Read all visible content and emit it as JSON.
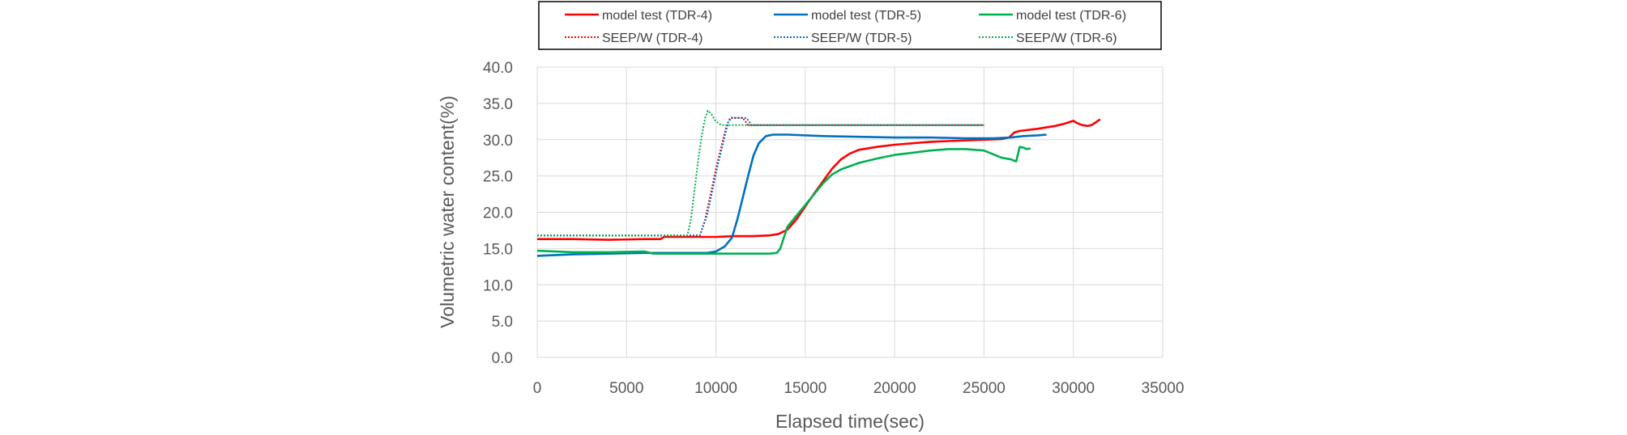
{
  "chart_data": {
    "type": "line",
    "title": "",
    "xlabel": "Elapsed time(sec)",
    "ylabel": "Volumetric water content(%)",
    "xlim": [
      0,
      35000
    ],
    "ylim": [
      0,
      40
    ],
    "xticks": [
      0,
      5000,
      10000,
      15000,
      20000,
      25000,
      30000,
      35000
    ],
    "yticks": [
      "0.0",
      "5.0",
      "10.0",
      "15.0",
      "20.0",
      "25.0",
      "30.0",
      "35.0",
      "40.0"
    ],
    "grid": true,
    "legend_position": "top",
    "series": [
      {
        "name": "model test (TDR-4)",
        "color": "#ff0000",
        "style": "solid",
        "points": [
          [
            0,
            16.3
          ],
          [
            2000,
            16.3
          ],
          [
            4000,
            16.2
          ],
          [
            6000,
            16.3
          ],
          [
            6900,
            16.3
          ],
          [
            7100,
            16.6
          ],
          [
            9000,
            16.6
          ],
          [
            10000,
            16.6
          ],
          [
            11000,
            16.7
          ],
          [
            12000,
            16.7
          ],
          [
            13000,
            16.8
          ],
          [
            13500,
            17.0
          ],
          [
            14000,
            17.6
          ],
          [
            14500,
            19.0
          ],
          [
            15000,
            20.8
          ],
          [
            15500,
            22.6
          ],
          [
            16000,
            24.3
          ],
          [
            16500,
            26.0
          ],
          [
            17000,
            27.3
          ],
          [
            17500,
            28.1
          ],
          [
            18000,
            28.6
          ],
          [
            19000,
            29.0
          ],
          [
            20000,
            29.3
          ],
          [
            21000,
            29.5
          ],
          [
            22000,
            29.7
          ],
          [
            23000,
            29.8
          ],
          [
            24000,
            29.9
          ],
          [
            25000,
            30.0
          ],
          [
            26000,
            30.1
          ],
          [
            26400,
            30.3
          ],
          [
            26700,
            31.0
          ],
          [
            27000,
            31.2
          ],
          [
            28000,
            31.5
          ],
          [
            29000,
            31.9
          ],
          [
            29500,
            32.2
          ],
          [
            30000,
            32.6
          ],
          [
            30200,
            32.3
          ],
          [
            30500,
            32.0
          ],
          [
            30800,
            31.9
          ],
          [
            31000,
            32.0
          ],
          [
            31200,
            32.3
          ],
          [
            31500,
            32.8
          ]
        ]
      },
      {
        "name": "model test (TDR-5)",
        "color": "#0070c0",
        "style": "solid",
        "points": [
          [
            0,
            14.0
          ],
          [
            2000,
            14.2
          ],
          [
            4000,
            14.3
          ],
          [
            6000,
            14.4
          ],
          [
            8000,
            14.4
          ],
          [
            9500,
            14.4
          ],
          [
            10000,
            14.6
          ],
          [
            10500,
            15.3
          ],
          [
            10900,
            16.5
          ],
          [
            11200,
            19.0
          ],
          [
            11500,
            22.0
          ],
          [
            11800,
            25.0
          ],
          [
            12100,
            27.8
          ],
          [
            12400,
            29.5
          ],
          [
            12800,
            30.5
          ],
          [
            13200,
            30.7
          ],
          [
            14000,
            30.7
          ],
          [
            16000,
            30.5
          ],
          [
            18000,
            30.4
          ],
          [
            20000,
            30.3
          ],
          [
            22000,
            30.3
          ],
          [
            24000,
            30.2
          ],
          [
            25500,
            30.2
          ],
          [
            26500,
            30.3
          ],
          [
            27200,
            30.5
          ],
          [
            28000,
            30.6
          ],
          [
            28500,
            30.7
          ]
        ]
      },
      {
        "name": "model test (TDR-6)",
        "color": "#00b050",
        "style": "solid",
        "points": [
          [
            0,
            14.7
          ],
          [
            2000,
            14.5
          ],
          [
            4000,
            14.5
          ],
          [
            6000,
            14.6
          ],
          [
            6500,
            14.3
          ],
          [
            8000,
            14.3
          ],
          [
            10000,
            14.3
          ],
          [
            12000,
            14.3
          ],
          [
            13000,
            14.3
          ],
          [
            13400,
            14.4
          ],
          [
            13600,
            15.0
          ],
          [
            13800,
            16.5
          ],
          [
            14000,
            18.0
          ],
          [
            14500,
            19.5
          ],
          [
            15000,
            21.0
          ],
          [
            15500,
            22.5
          ],
          [
            16000,
            24.0
          ],
          [
            16500,
            25.2
          ],
          [
            17000,
            25.9
          ],
          [
            18000,
            26.8
          ],
          [
            19000,
            27.4
          ],
          [
            20000,
            27.9
          ],
          [
            21000,
            28.2
          ],
          [
            22000,
            28.5
          ],
          [
            23000,
            28.7
          ],
          [
            24000,
            28.7
          ],
          [
            25000,
            28.5
          ],
          [
            25500,
            28.0
          ],
          [
            26000,
            27.5
          ],
          [
            26500,
            27.3
          ],
          [
            26800,
            27.0
          ],
          [
            27000,
            29.0
          ],
          [
            27200,
            28.9
          ],
          [
            27400,
            28.7
          ],
          [
            27600,
            28.8
          ]
        ]
      },
      {
        "name": "SEEP/W (TDR-4)",
        "color": "#ff0000",
        "style": "dotted",
        "points": [
          [
            0,
            16.8
          ],
          [
            8000,
            16.8
          ],
          [
            9100,
            16.8
          ],
          [
            9400,
            19.0
          ],
          [
            9700,
            22.5
          ],
          [
            10000,
            26.0
          ],
          [
            10300,
            29.0
          ],
          [
            10600,
            32.0
          ],
          [
            10800,
            33.0
          ],
          [
            11500,
            33.0
          ],
          [
            11800,
            32.0
          ],
          [
            25000,
            32.0
          ]
        ]
      },
      {
        "name": "SEEP/W (TDR-5)",
        "color": "#0070c0",
        "style": "dotted",
        "points": [
          [
            0,
            16.8
          ],
          [
            8000,
            16.8
          ],
          [
            9100,
            16.8
          ],
          [
            9500,
            19.5
          ],
          [
            9800,
            23.0
          ],
          [
            10100,
            26.5
          ],
          [
            10400,
            29.5
          ],
          [
            10700,
            32.5
          ],
          [
            10900,
            33.0
          ],
          [
            11700,
            33.0
          ],
          [
            12000,
            32.0
          ],
          [
            25000,
            32.0
          ]
        ]
      },
      {
        "name": "SEEP/W (TDR-6)",
        "color": "#00b050",
        "style": "dotted",
        "points": [
          [
            0,
            16.8
          ],
          [
            8000,
            16.8
          ],
          [
            8400,
            16.8
          ],
          [
            8600,
            19.0
          ],
          [
            8800,
            23.0
          ],
          [
            9000,
            27.0
          ],
          [
            9200,
            30.5
          ],
          [
            9400,
            33.0
          ],
          [
            9550,
            34.0
          ],
          [
            9750,
            33.5
          ],
          [
            10000,
            32.5
          ],
          [
            10300,
            32.0
          ],
          [
            25000,
            32.0
          ]
        ]
      }
    ]
  }
}
